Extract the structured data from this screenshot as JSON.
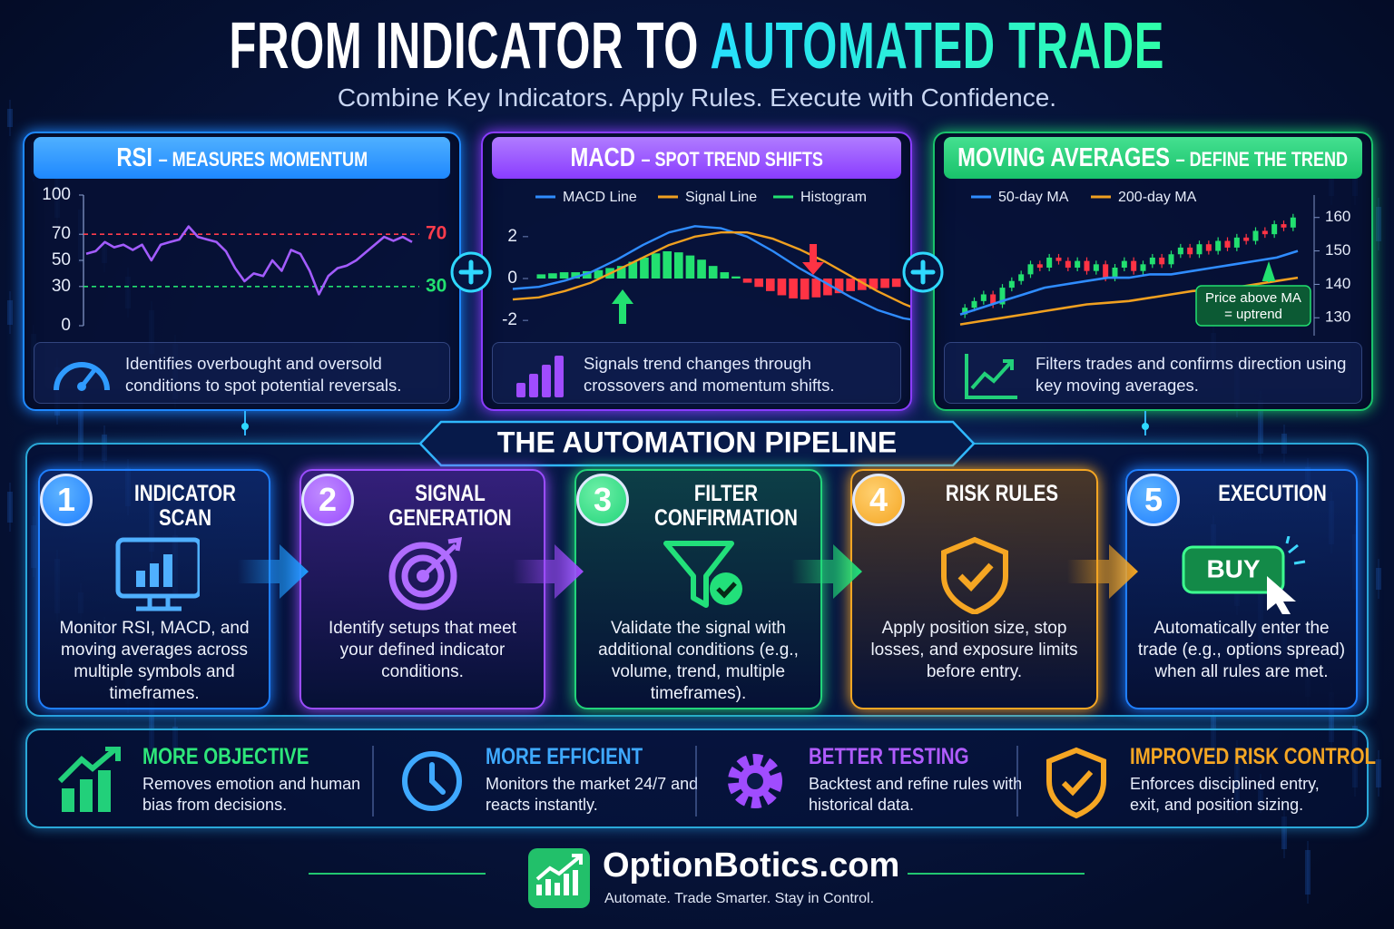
{
  "title": {
    "part1": "FROM INDICATOR TO",
    "part2": "AUTOMATED TRADE"
  },
  "subtitle": "Combine Key Indicators. Apply Rules. Execute with Confidence.",
  "indicators": [
    {
      "name": "RSI",
      "tagline": "– MEASURES MOMENTUM",
      "description": "Identifies overbought and oversold conditions to spot potential reversals.",
      "chart": {
        "type": "line",
        "ylim": [
          0,
          100
        ],
        "yticks": [
          0,
          30,
          50,
          70,
          100
        ],
        "color": "#a35cff",
        "overbought": 70,
        "oversold": 30,
        "values": [
          55,
          57,
          64,
          60,
          62,
          58,
          62,
          50,
          62,
          64,
          66,
          76,
          68,
          66,
          64,
          57,
          44,
          34,
          40,
          38,
          50,
          42,
          58,
          55,
          42,
          24,
          38,
          44,
          46,
          50,
          56,
          62,
          68,
          65,
          68,
          64
        ]
      }
    },
    {
      "name": "MACD",
      "tagline": "– SPOT TREND SHIFTS",
      "description": "Signals trend changes through crossovers and momentum shifts.",
      "chart": {
        "type": "macd",
        "ylim": [
          -2.6,
          2.6
        ],
        "yticks": [
          -2,
          0,
          2
        ],
        "series": [
          {
            "name": "MACD Line",
            "color": "#2f8cff",
            "values": [
              -0.5,
              -0.4,
              -0.1,
              0.3,
              0.9,
              1.6,
              2.2,
              2.5,
              2.4,
              2.0,
              1.3,
              0.5,
              -0.2,
              -0.9,
              -1.5,
              -1.9,
              -2.1
            ]
          },
          {
            "name": "Signal Line",
            "color": "#f0a020",
            "values": [
              -1.0,
              -0.9,
              -0.6,
              -0.2,
              0.4,
              1.0,
              1.6,
              2.0,
              2.2,
              2.2,
              1.9,
              1.4,
              0.8,
              0.1,
              -0.6,
              -1.2,
              -1.7
            ]
          },
          {
            "name": "Histogram",
            "color": "#22e070",
            "negative_color": "#ff3344",
            "values": [
              0.2,
              0.25,
              0.3,
              0.3,
              0.35,
              0.4,
              0.5,
              0.6,
              0.8,
              1.0,
              1.2,
              1.3,
              1.25,
              1.1,
              0.9,
              0.6,
              0.3,
              0.1,
              -0.2,
              -0.4,
              -0.6,
              -0.8,
              -0.95,
              -1.0,
              -0.9,
              -0.8,
              -0.7,
              -0.6,
              -0.55,
              -0.5,
              -0.45,
              -0.4
            ]
          }
        ]
      }
    },
    {
      "name": "MOVING AVERAGES",
      "tagline": "– DEFINE THE TREND",
      "description": "Filters trades and confirms direction using key moving averages.",
      "chart": {
        "type": "candlestick",
        "ylim": [
          126,
          164
        ],
        "yticks": [
          130,
          140,
          150,
          160
        ],
        "up_color": "#22e070",
        "down_color": "#ff3344",
        "open": [
          131,
          133,
          135,
          137,
          134,
          139,
          141,
          143,
          146,
          145,
          148,
          147,
          145,
          147,
          144,
          146,
          142,
          145,
          147,
          144,
          146,
          148,
          146,
          149,
          151,
          149,
          152,
          150,
          153,
          151,
          154,
          153,
          156,
          155,
          158,
          157
        ],
        "close": [
          133,
          135,
          137,
          134,
          139,
          141,
          143,
          146,
          145,
          148,
          147,
          145,
          147,
          144,
          146,
          142,
          145,
          147,
          144,
          146,
          148,
          146,
          149,
          151,
          149,
          152,
          150,
          153,
          151,
          154,
          153,
          156,
          155,
          158,
          157,
          160
        ],
        "series": [
          {
            "name": "50-day MA",
            "color": "#2f8cff",
            "values": [
              131,
              133,
              135,
              137,
              139,
              140,
              141,
              142,
              142,
              143,
              143,
              144,
              145,
              146,
              147,
              148,
              150
            ]
          },
          {
            "name": "200-day MA",
            "color": "#f0a020",
            "values": [
              128,
              129,
              130,
              131,
              132,
              133,
              134,
              134.5,
              135,
              136,
              137,
              138,
              138.5,
              139,
              140,
              141,
              142
            ]
          }
        ],
        "annotation": [
          "Price above MA",
          "= uptrend"
        ]
      }
    }
  ],
  "pipeline": {
    "title": "THE AUTOMATION PIPELINE",
    "steps": [
      {
        "number": 1,
        "title": "INDICATOR SCAN",
        "description": "Monitor RSI, MACD, and moving averages across multiple symbols and timeframes."
      },
      {
        "number": 2,
        "title": "SIGNAL GENERATION",
        "description": "Identify setups that meet your defined indicator conditions."
      },
      {
        "number": 3,
        "title": "FILTER CONFIRMATION",
        "description": "Validate the signal with additional conditions (e.g., volume, trend, multiple timeframes)."
      },
      {
        "number": 4,
        "title": "RISK RULES",
        "description": "Apply position size, stop losses, and exposure limits before entry."
      },
      {
        "number": 5,
        "title": "EXECUTION",
        "button": "BUY",
        "description": "Automatically enter the trade (e.g., options spread) when all rules are met."
      }
    ]
  },
  "benefits": [
    {
      "title": "MORE OBJECTIVE",
      "description": "Removes emotion and human bias from decisions."
    },
    {
      "title": "MORE EFFICIENT",
      "description": "Monitors the market 24/7 and reacts instantly."
    },
    {
      "title": "BETTER TESTING",
      "description": "Backtest and refine rules with historical data."
    },
    {
      "title": "IMPROVED RISK CONTROL",
      "description": "Enforces disciplined entry, exit, and position sizing."
    }
  ],
  "footer": {
    "brand": "OptionBotics.com",
    "tagline": "Automate. Trade Smarter. Stay in Control."
  }
}
